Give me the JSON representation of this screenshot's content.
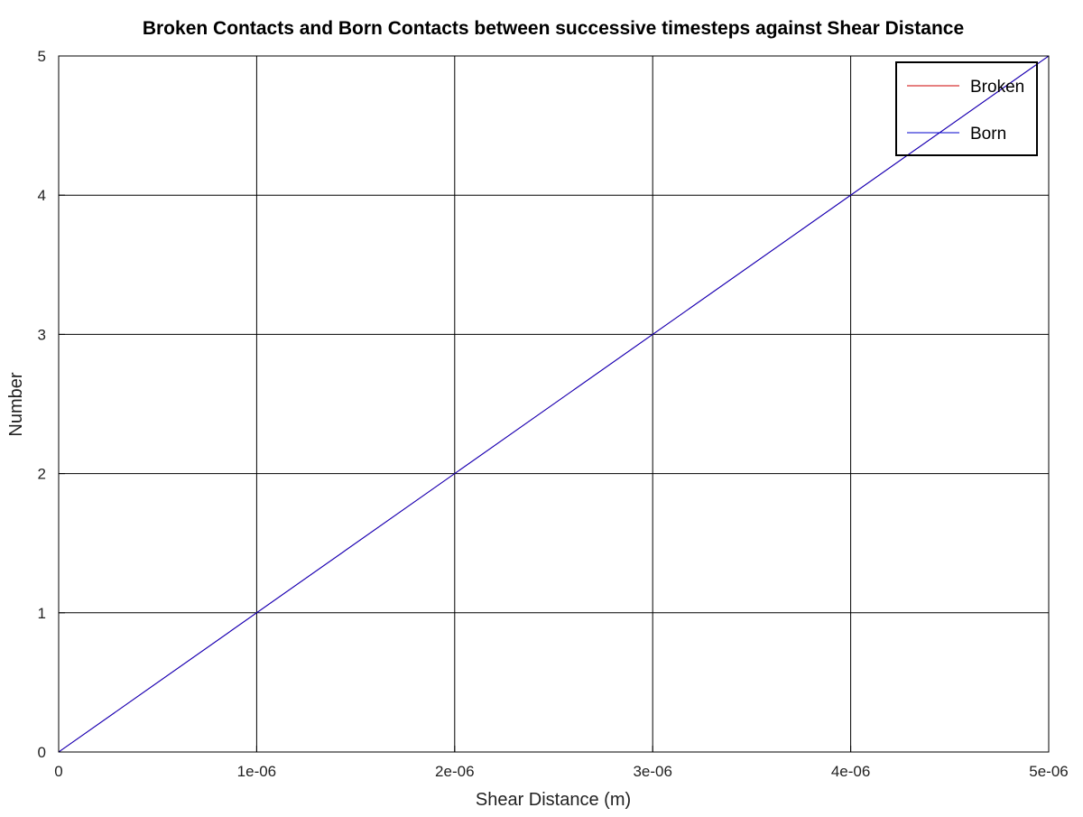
{
  "chart_data": {
    "type": "line",
    "title": "Broken Contacts and Born Contacts between successive timesteps against Shear Distance",
    "xlabel": "Shear Distance (m)",
    "ylabel": "Number",
    "xlim": [
      0,
      5e-06
    ],
    "ylim": [
      0,
      5
    ],
    "x_ticks": [
      0,
      1e-06,
      2e-06,
      3e-06,
      4e-06,
      5e-06
    ],
    "x_tick_labels": [
      "0",
      "1e-06",
      "2e-06",
      "3e-06",
      "4e-06",
      "5e-06"
    ],
    "y_ticks": [
      0,
      1,
      2,
      3,
      4,
      5
    ],
    "y_tick_labels": [
      "0",
      "1",
      "2",
      "3",
      "4",
      "5"
    ],
    "grid": true,
    "legend_position": "top-right",
    "series": [
      {
        "name": "Broken",
        "color": "#cc0000",
        "x": [
          0,
          5e-06
        ],
        "y": [
          0,
          5
        ]
      },
      {
        "name": "Born",
        "color": "#0000cc",
        "x": [
          0,
          5e-06
        ],
        "y": [
          0,
          5
        ]
      }
    ]
  }
}
